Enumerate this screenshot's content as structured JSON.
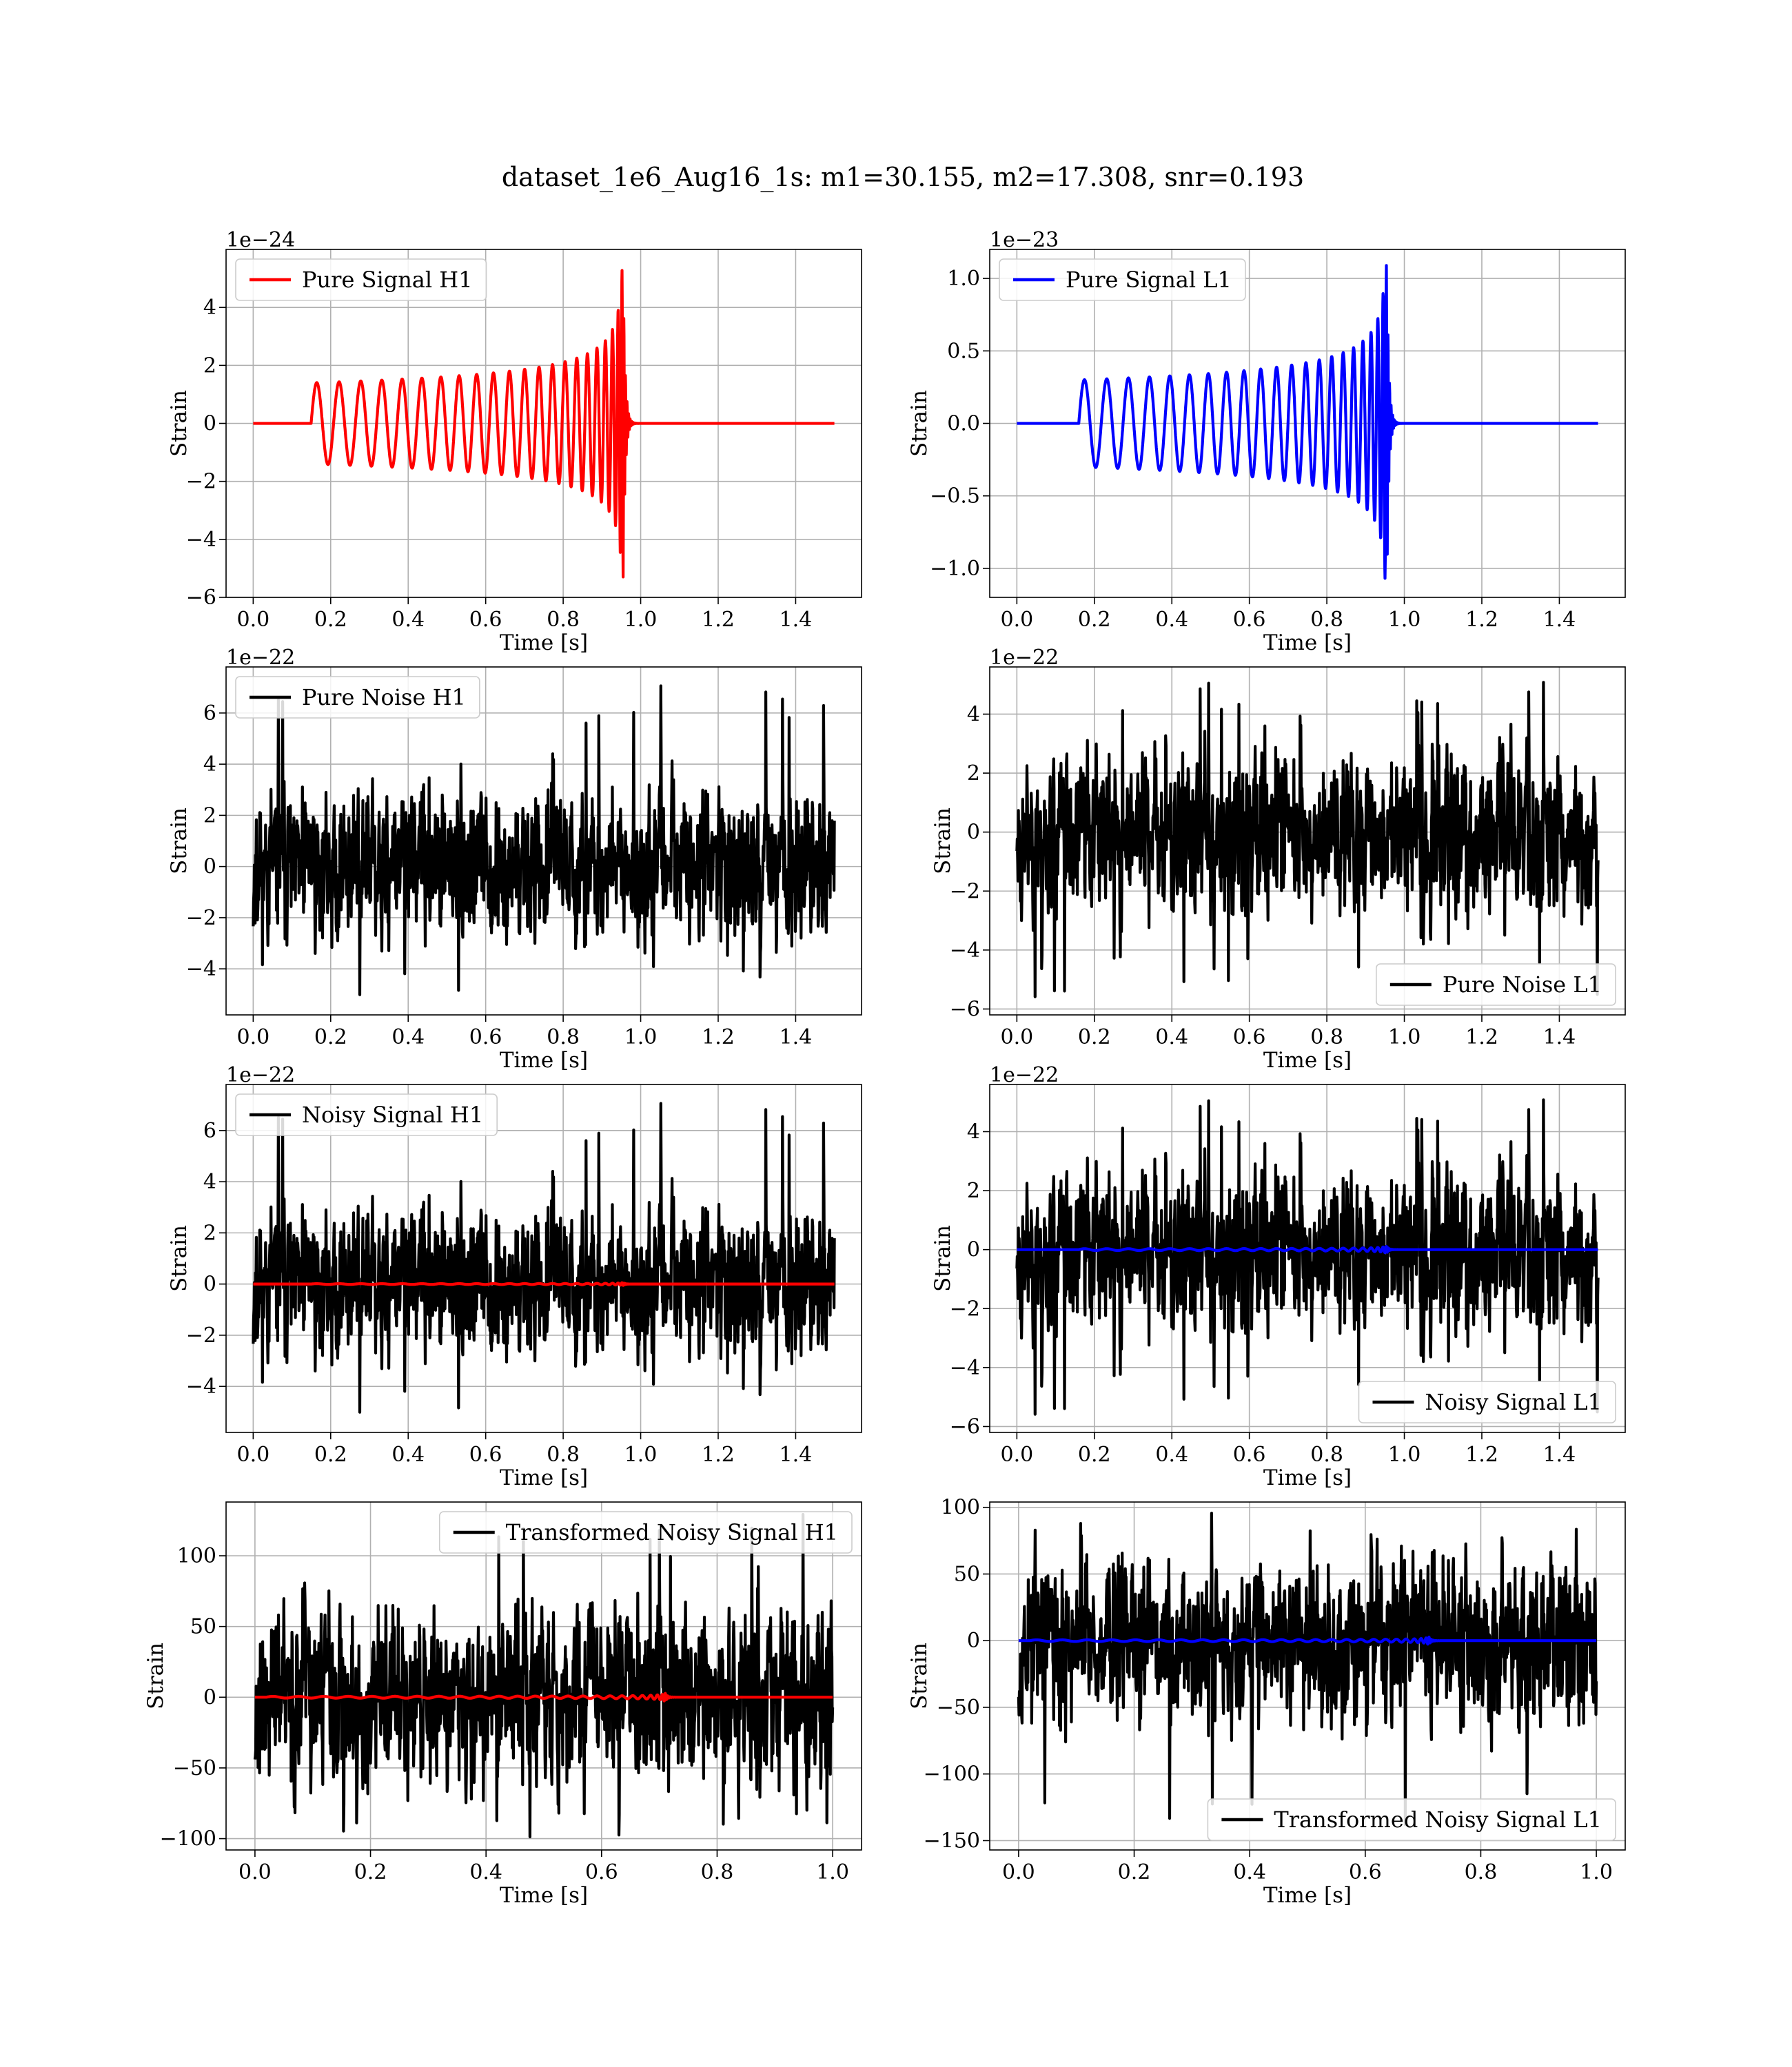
{
  "figure": {
    "title": "dataset_1e6_Aug16_1s: m1=30.155, m2=17.308, snr=0.193"
  },
  "chart_data": [
    {
      "type": "line",
      "id": "pure-signal-h1",
      "xlabel": "Time [s]",
      "ylabel": "Strain",
      "offset_label": "1e−24",
      "xlim": [
        -0.07,
        1.57
      ],
      "ylim": [
        -6,
        6
      ],
      "xticks": [
        0.0,
        0.2,
        0.4,
        0.6,
        0.8,
        1.0,
        1.2,
        1.4
      ],
      "xtick_labels": [
        "0.0",
        "0.2",
        "0.4",
        "0.6",
        "0.8",
        "1.0",
        "1.2",
        "1.4"
      ],
      "yticks": [
        -6,
        -4,
        -2,
        0,
        2,
        4
      ],
      "ytick_labels": [
        "−6",
        "−4",
        "−2",
        "0",
        "2",
        "4"
      ],
      "grid": true,
      "legend_position": "upper-left",
      "series": [
        {
          "name": "Pure Signal H1",
          "color": "#ff0000",
          "kind": "chirp",
          "x_end": 1.5,
          "onset": 0.15,
          "merger": 0.955,
          "start_amp": 1.4,
          "peak_amp": 5.3,
          "start_freq": 17,
          "ringdown": 0.005
        }
      ]
    },
    {
      "type": "line",
      "id": "pure-signal-l1",
      "xlabel": "Time [s]",
      "ylabel": "Strain",
      "offset_label": "1e−23",
      "xlim": [
        -0.07,
        1.57
      ],
      "ylim": [
        -1.2,
        1.2
      ],
      "xticks": [
        0.0,
        0.2,
        0.4,
        0.6,
        0.8,
        1.0,
        1.2,
        1.4
      ],
      "xtick_labels": [
        "0.0",
        "0.2",
        "0.4",
        "0.6",
        "0.8",
        "1.0",
        "1.2",
        "1.4"
      ],
      "yticks": [
        -1.0,
        -0.5,
        0.0,
        0.5,
        1.0
      ],
      "ytick_labels": [
        "−1.0",
        "−0.5",
        "0.0",
        "0.5",
        "1.0"
      ],
      "grid": true,
      "legend_position": "upper-left",
      "series": [
        {
          "name": "Pure Signal L1",
          "color": "#0000ff",
          "kind": "chirp",
          "x_end": 1.5,
          "onset": 0.16,
          "merger": 0.955,
          "start_amp": 0.3,
          "peak_amp": 1.1,
          "start_freq": 17,
          "ringdown": 0.005
        }
      ]
    },
    {
      "type": "line",
      "id": "pure-noise-h1",
      "xlabel": "Time [s]",
      "ylabel": "Strain",
      "offset_label": "1e−22",
      "xlim": [
        -0.07,
        1.57
      ],
      "ylim": [
        -5.8,
        7.8
      ],
      "xticks": [
        0.0,
        0.2,
        0.4,
        0.6,
        0.8,
        1.0,
        1.2,
        1.4
      ],
      "xtick_labels": [
        "0.0",
        "0.2",
        "0.4",
        "0.6",
        "0.8",
        "1.0",
        "1.2",
        "1.4"
      ],
      "yticks": [
        -4,
        -2,
        0,
        2,
        4,
        6
      ],
      "ytick_labels": [
        "−4",
        "−2",
        "0",
        "2",
        "4",
        "6"
      ],
      "grid": true,
      "legend_position": "upper-left",
      "series": [
        {
          "name": "Pure Noise H1",
          "color": "#000000",
          "kind": "noise",
          "x_end": 1.5,
          "sigma": 1.3,
          "max": 7.2,
          "min": -5.2,
          "seed": 11
        }
      ]
    },
    {
      "type": "line",
      "id": "pure-noise-l1",
      "xlabel": "Time [s]",
      "ylabel": "Strain",
      "offset_label": "1e−22",
      "xlim": [
        -0.07,
        1.57
      ],
      "ylim": [
        -6.2,
        5.6
      ],
      "xticks": [
        0.0,
        0.2,
        0.4,
        0.6,
        0.8,
        1.0,
        1.2,
        1.4
      ],
      "xtick_labels": [
        "0.0",
        "0.2",
        "0.4",
        "0.6",
        "0.8",
        "1.0",
        "1.2",
        "1.4"
      ],
      "yticks": [
        -6,
        -4,
        -2,
        0,
        2,
        4
      ],
      "ytick_labels": [
        "−6",
        "−4",
        "−2",
        "0",
        "2",
        "4"
      ],
      "grid": true,
      "legend_position": "lower-right",
      "series": [
        {
          "name": "Pure Noise L1",
          "color": "#000000",
          "kind": "noise",
          "x_end": 1.5,
          "sigma": 1.25,
          "max": 5.1,
          "min": -5.6,
          "seed": 23
        }
      ]
    },
    {
      "type": "line",
      "id": "noisy-signal-h1",
      "xlabel": "Time [s]",
      "ylabel": "Strain",
      "offset_label": "1e−22",
      "xlim": [
        -0.07,
        1.57
      ],
      "ylim": [
        -5.8,
        7.8
      ],
      "xticks": [
        0.0,
        0.2,
        0.4,
        0.6,
        0.8,
        1.0,
        1.2,
        1.4
      ],
      "xtick_labels": [
        "0.0",
        "0.2",
        "0.4",
        "0.6",
        "0.8",
        "1.0",
        "1.2",
        "1.4"
      ],
      "yticks": [
        -4,
        -2,
        0,
        2,
        4,
        6
      ],
      "ytick_labels": [
        "−4",
        "−2",
        "0",
        "2",
        "4",
        "6"
      ],
      "grid": true,
      "legend_position": "upper-left",
      "series": [
        {
          "name": "Noisy Signal H1",
          "color": "#000000",
          "kind": "noise",
          "x_end": 1.5,
          "sigma": 1.3,
          "max": 7.2,
          "min": -5.2,
          "seed": 11
        },
        {
          "color": "#ff0000",
          "kind": "chirp",
          "x_end": 1.5,
          "onset": 0.15,
          "merger": 0.955,
          "start_amp": 0.014,
          "peak_amp": 0.053,
          "start_freq": 17,
          "ringdown": 0.005
        }
      ]
    },
    {
      "type": "line",
      "id": "noisy-signal-l1",
      "xlabel": "Time [s]",
      "ylabel": "Strain",
      "offset_label": "1e−22",
      "xlim": [
        -0.07,
        1.57
      ],
      "ylim": [
        -6.2,
        5.6
      ],
      "xticks": [
        0.0,
        0.2,
        0.4,
        0.6,
        0.8,
        1.0,
        1.2,
        1.4
      ],
      "xtick_labels": [
        "0.0",
        "0.2",
        "0.4",
        "0.6",
        "0.8",
        "1.0",
        "1.2",
        "1.4"
      ],
      "yticks": [
        -6,
        -4,
        -2,
        0,
        2,
        4
      ],
      "ytick_labels": [
        "−6",
        "−4",
        "−2",
        "0",
        "2",
        "4"
      ],
      "grid": true,
      "legend_position": "lower-right",
      "series": [
        {
          "name": "Noisy Signal L1",
          "color": "#000000",
          "kind": "noise",
          "x_end": 1.5,
          "sigma": 1.25,
          "max": 5.1,
          "min": -5.6,
          "seed": 23
        },
        {
          "color": "#0000ff",
          "kind": "chirp",
          "x_end": 1.5,
          "onset": 0.16,
          "merger": 0.955,
          "start_amp": 0.03,
          "peak_amp": 0.11,
          "start_freq": 17,
          "ringdown": 0.005
        }
      ]
    },
    {
      "type": "line",
      "id": "transformed-noisy-signal-h1",
      "xlabel": "Time [s]",
      "ylabel": "Strain",
      "offset_label": "",
      "xlim": [
        -0.05,
        1.05
      ],
      "ylim": [
        -108,
        138
      ],
      "xticks": [
        0.0,
        0.2,
        0.4,
        0.6,
        0.8,
        1.0
      ],
      "xtick_labels": [
        "0.0",
        "0.2",
        "0.4",
        "0.6",
        "0.8",
        "1.0"
      ],
      "yticks": [
        -100,
        -50,
        0,
        50,
        100
      ],
      "ytick_labels": [
        "−100",
        "−50",
        "0",
        "50",
        "100"
      ],
      "grid": true,
      "legend_position": "upper-right",
      "series": [
        {
          "name": "Transformed Noisy Signal H1",
          "color": "#000000",
          "kind": "noise",
          "x_end": 1.0,
          "sigma": 28,
          "max": 132,
          "min": -101,
          "seed": 37
        },
        {
          "color": "#ff0000",
          "kind": "chirp",
          "x_end": 1.0,
          "onset": 0.02,
          "merger": 0.71,
          "start_amp": 0.6,
          "peak_amp": 3.0,
          "start_freq": 22,
          "ringdown": 0.004
        }
      ]
    },
    {
      "type": "line",
      "id": "transformed-noisy-signal-l1",
      "xlabel": "Time [s]",
      "ylabel": "Strain",
      "offset_label": "",
      "xlim": [
        -0.05,
        1.05
      ],
      "ylim": [
        -157,
        104
      ],
      "xticks": [
        0.0,
        0.2,
        0.4,
        0.6,
        0.8,
        1.0
      ],
      "xtick_labels": [
        "0.0",
        "0.2",
        "0.4",
        "0.6",
        "0.8",
        "1.0"
      ],
      "yticks": [
        -150,
        -100,
        -50,
        0,
        50,
        100
      ],
      "ytick_labels": [
        "−150",
        "−100",
        "−50",
        "0",
        "50",
        "100"
      ],
      "grid": true,
      "legend_position": "lower-right",
      "series": [
        {
          "name": "Transformed Noisy Signal L1",
          "color": "#000000",
          "kind": "noise",
          "x_end": 1.0,
          "sigma": 27,
          "max": 98,
          "min": -146,
          "seed": 53
        },
        {
          "color": "#0000ff",
          "kind": "chirp",
          "x_end": 1.0,
          "onset": 0.02,
          "merger": 0.71,
          "start_amp": 0.6,
          "peak_amp": 3.0,
          "start_freq": 22,
          "ringdown": 0.004
        }
      ]
    }
  ]
}
